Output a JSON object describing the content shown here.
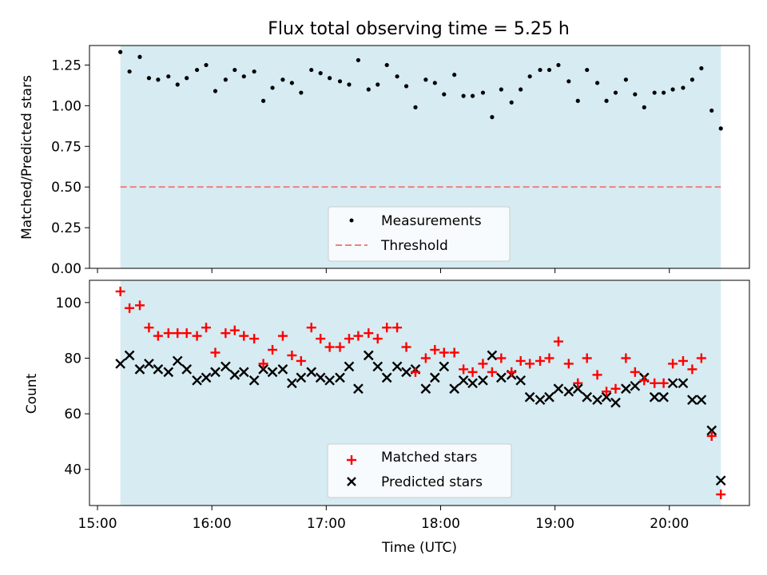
{
  "chart_data": {
    "title": "Flux total observing time = 5.25 h",
    "xlabel": "Time (UTC)",
    "x_ticks": [
      {
        "h": 15.0,
        "label": "15:00"
      },
      {
        "h": 16.0,
        "label": "16:00"
      },
      {
        "h": 17.0,
        "label": "17:00"
      },
      {
        "h": 18.0,
        "label": "18:00"
      },
      {
        "h": 19.0,
        "label": "19:00"
      },
      {
        "h": 20.0,
        "label": "20:00"
      }
    ],
    "xlim": [
      14.93,
      20.7
    ],
    "observing_span": [
      15.2,
      20.45
    ],
    "colors": {
      "span": "#add8e6",
      "measurement": "#000000",
      "threshold": "#f08080",
      "matched": "#ff0000",
      "predicted": "#000000"
    },
    "times": [
      15.2,
      15.28,
      15.37,
      15.45,
      15.53,
      15.62,
      15.7,
      15.78,
      15.87,
      15.95,
      16.03,
      16.12,
      16.2,
      16.28,
      16.37,
      16.45,
      16.53,
      16.62,
      16.7,
      16.78,
      16.87,
      16.95,
      17.03,
      17.12,
      17.2,
      17.28,
      17.37,
      17.45,
      17.53,
      17.62,
      17.7,
      17.78,
      17.87,
      17.95,
      18.03,
      18.12,
      18.2,
      18.28,
      18.37,
      18.45,
      18.53,
      18.62,
      18.7,
      18.78,
      18.87,
      18.95,
      19.03,
      19.12,
      19.2,
      19.28,
      19.37,
      19.45,
      19.53,
      19.62,
      19.7,
      19.78,
      19.87,
      19.95,
      20.03,
      20.12,
      20.2,
      20.28,
      20.37,
      20.45
    ],
    "top": {
      "type": "scatter",
      "ylabel": "Matched/Predicted stars",
      "ylim": [
        0,
        1.37
      ],
      "y_ticks": [
        {
          "v": 0.0,
          "label": "0.00"
        },
        {
          "v": 0.25,
          "label": "0.25"
        },
        {
          "v": 0.5,
          "label": "0.50"
        },
        {
          "v": 0.75,
          "label": "0.75"
        },
        {
          "v": 1.0,
          "label": "1.00"
        },
        {
          "v": 1.25,
          "label": "1.25"
        }
      ],
      "threshold": 0.5,
      "series": [
        {
          "name": "Measurements",
          "values": [
            1.33,
            1.21,
            1.3,
            1.17,
            1.16,
            1.18,
            1.13,
            1.17,
            1.22,
            1.25,
            1.09,
            1.16,
            1.22,
            1.18,
            1.21,
            1.03,
            1.11,
            1.16,
            1.14,
            1.08,
            1.22,
            1.2,
            1.17,
            1.15,
            1.13,
            1.28,
            1.1,
            1.13,
            1.25,
            1.18,
            1.12,
            0.99,
            1.16,
            1.14,
            1.07,
            1.19,
            1.06,
            1.06,
            1.08,
            0.93,
            1.1,
            1.02,
            1.1,
            1.18,
            1.22,
            1.22,
            1.25,
            1.15,
            1.03,
            1.22,
            1.14,
            1.03,
            1.08,
            1.16,
            1.07,
            0.99,
            1.08,
            1.08,
            1.1,
            1.11,
            1.16,
            1.23,
            0.97,
            0.86
          ]
        },
        {
          "name": "Threshold"
        }
      ],
      "legend": "lower-center"
    },
    "bottom": {
      "type": "scatter",
      "ylabel": "Count",
      "ylim": [
        27,
        108
      ],
      "y_ticks": [
        {
          "v": 40,
          "label": "40"
        },
        {
          "v": 60,
          "label": "60"
        },
        {
          "v": 80,
          "label": "80"
        },
        {
          "v": 100,
          "label": "100"
        }
      ],
      "series": [
        {
          "name": "Matched stars",
          "marker": "+",
          "values": [
            104,
            98,
            99,
            91,
            88,
            89,
            89,
            89,
            88,
            91,
            82,
            89,
            90,
            88,
            87,
            78,
            83,
            88,
            81,
            79,
            91,
            87,
            84,
            84,
            87,
            88,
            89,
            87,
            91,
            91,
            84,
            75,
            80,
            83,
            82,
            82,
            76,
            75,
            78,
            75,
            80,
            75,
            79,
            78,
            79,
            80,
            86,
            78,
            71,
            80,
            74,
            68,
            69,
            80,
            75,
            72,
            71,
            71,
            78,
            79,
            76,
            80,
            52,
            31
          ]
        },
        {
          "name": "Predicted stars",
          "marker": "x",
          "values": [
            78,
            81,
            76,
            78,
            76,
            75,
            79,
            76,
            72,
            73,
            75,
            77,
            74,
            75,
            72,
            76,
            75,
            76,
            71,
            73,
            75,
            73,
            72,
            73,
            77,
            69,
            81,
            77,
            73,
            77,
            75,
            76,
            69,
            73,
            77,
            69,
            72,
            71,
            72,
            81,
            73,
            74,
            72,
            66,
            65,
            66,
            69,
            68,
            69,
            66,
            65,
            66,
            64,
            69,
            70,
            73,
            66,
            66,
            71,
            71,
            65,
            65,
            54,
            36
          ]
        }
      ],
      "legend": "lower-center"
    }
  }
}
